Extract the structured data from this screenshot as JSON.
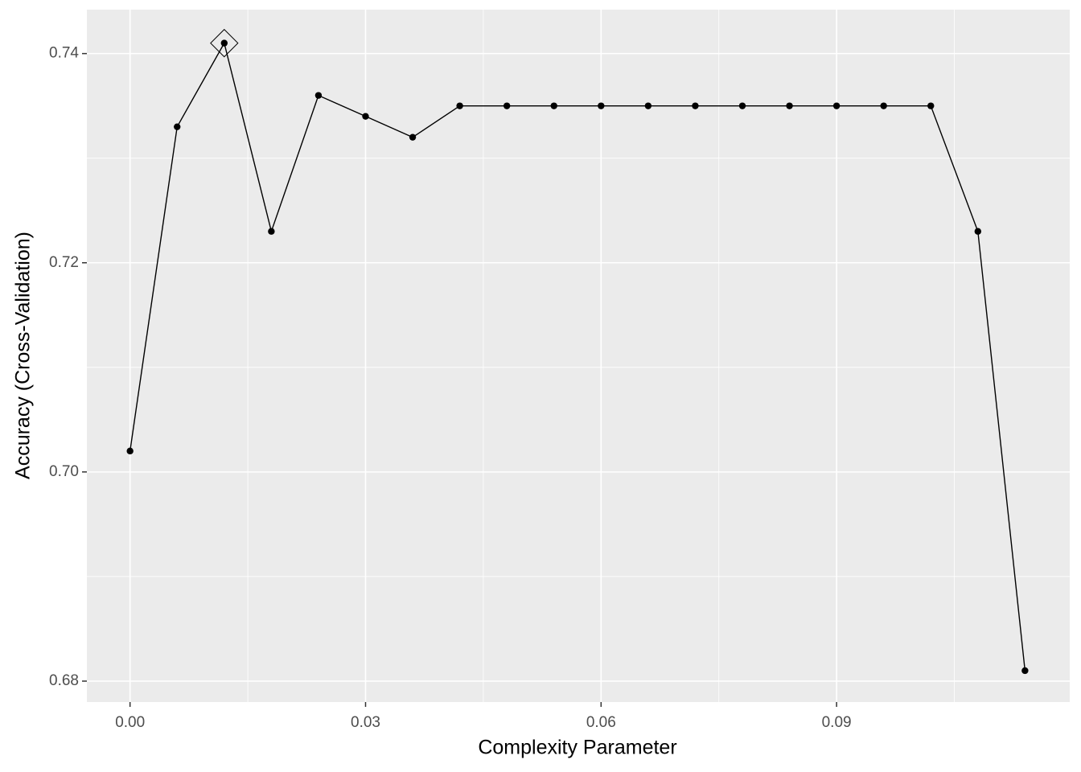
{
  "chart_data": {
    "type": "line",
    "x_label": "Complexity Parameter",
    "y_label": "Accuracy (Cross-Validation)",
    "x": [
      0,
      0.006,
      0.012,
      0.018,
      0.024,
      0.03,
      0.036,
      0.042,
      0.048,
      0.054,
      0.06,
      0.066,
      0.072,
      0.078,
      0.084,
      0.09,
      0.096,
      0.102,
      0.108,
      0.114
    ],
    "series": [
      {
        "color": "#000000",
        "values": [
          0.702,
          0.733,
          0.741,
          0.723,
          0.736,
          0.734,
          0.732,
          0.735,
          0.735,
          0.735,
          0.735,
          0.735,
          0.735,
          0.735,
          0.735,
          0.735,
          0.735,
          0.735,
          0.723,
          0.681
        ]
      }
    ],
    "highlight_index": 2,
    "xlim": [
      -0.0055,
      0.1197
    ],
    "ylim": [
      0.678,
      0.7442
    ],
    "xticks": [
      {
        "value": 0,
        "label": "0.00"
      },
      {
        "value": 0.03,
        "label": "0.03"
      },
      {
        "value": 0.06,
        "label": "0.06"
      },
      {
        "value": 0.09,
        "label": "0.09"
      }
    ],
    "yticks": [
      {
        "value": 0.68,
        "label": "0.68"
      },
      {
        "value": 0.7,
        "label": "0.70"
      },
      {
        "value": 0.72,
        "label": "0.72"
      },
      {
        "value": 0.74,
        "label": "0.74"
      }
    ],
    "x_minor_grid": [
      0.015,
      0.045,
      0.075,
      0.105
    ],
    "y_minor_grid": [
      0.69,
      0.71,
      0.73
    ],
    "grid": true
  }
}
